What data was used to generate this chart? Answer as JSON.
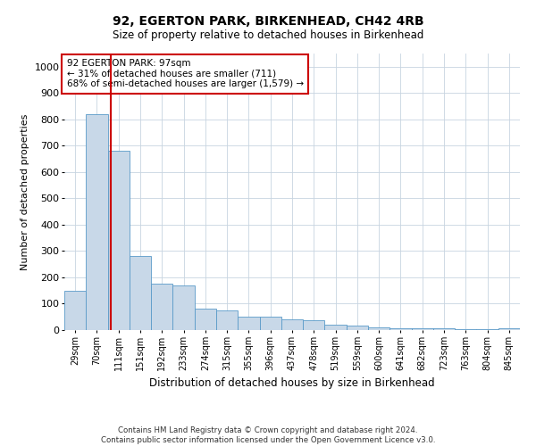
{
  "title1": "92, EGERTON PARK, BIRKENHEAD, CH42 4RB",
  "title2": "Size of property relative to detached houses in Birkenhead",
  "xlabel": "Distribution of detached houses by size in Birkenhead",
  "ylabel": "Number of detached properties",
  "footer1": "Contains HM Land Registry data © Crown copyright and database right 2024.",
  "footer2": "Contains public sector information licensed under the Open Government Licence v3.0.",
  "bins": [
    "29sqm",
    "70sqm",
    "111sqm",
    "151sqm",
    "192sqm",
    "233sqm",
    "274sqm",
    "315sqm",
    "355sqm",
    "396sqm",
    "437sqm",
    "478sqm",
    "519sqm",
    "559sqm",
    "600sqm",
    "641sqm",
    "682sqm",
    "723sqm",
    "763sqm",
    "804sqm",
    "845sqm"
  ],
  "bar_values": [
    150,
    820,
    680,
    280,
    175,
    170,
    80,
    75,
    50,
    50,
    40,
    38,
    20,
    18,
    10,
    8,
    8,
    8,
    5,
    2,
    8
  ],
  "bar_color": "#c8d8e8",
  "bar_edgecolor": "#5a9ac8",
  "ylim": [
    0,
    1050
  ],
  "yticks": [
    0,
    100,
    200,
    300,
    400,
    500,
    600,
    700,
    800,
    900,
    1000
  ],
  "vline_x": 1.66,
  "vline_color": "#cc0000",
  "annotation_line1": "92 EGERTON PARK: 97sqm",
  "annotation_line2": "← 31% of detached houses are smaller (711)",
  "annotation_line3": "68% of semi-detached houses are larger (1,579) →",
  "annotation_box_color": "#cc0000",
  "background_color": "#ffffff",
  "grid_color": "#c8d4e0"
}
